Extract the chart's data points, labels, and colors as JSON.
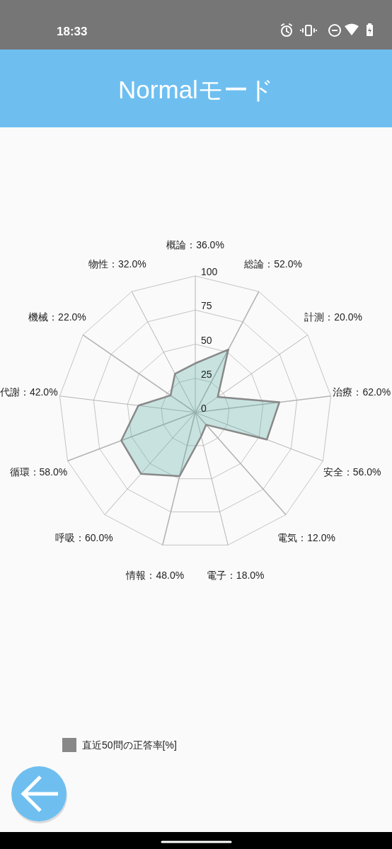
{
  "chart_data": {
    "type": "radar",
    "title": "Normalモード",
    "annotations": [
      "18:33"
    ],
    "categories": [
      "概論：36.0%",
      "総論：52.0%",
      "計測：20.0%",
      "治療：62.0%",
      "安全：56.0%",
      "電気：12.0%",
      "電子：18.0%",
      "情報：48.0%",
      "呼吸：60.0%",
      "循環：58.0%",
      "代謝：42.0%",
      "機械：22.0%",
      "物性：32.0%"
    ],
    "series": [
      {
        "name": "直近50問の正答率[%]",
        "color": "#888888",
        "values": [
          36,
          52,
          20,
          62,
          56,
          12,
          18,
          48,
          60,
          58,
          42,
          22,
          32
        ]
      }
    ],
    "ylim": [
      0,
      100
    ],
    "yticks": [
      0,
      25,
      50,
      75,
      100
    ],
    "grid": true,
    "legend": "bottom left"
  }
}
